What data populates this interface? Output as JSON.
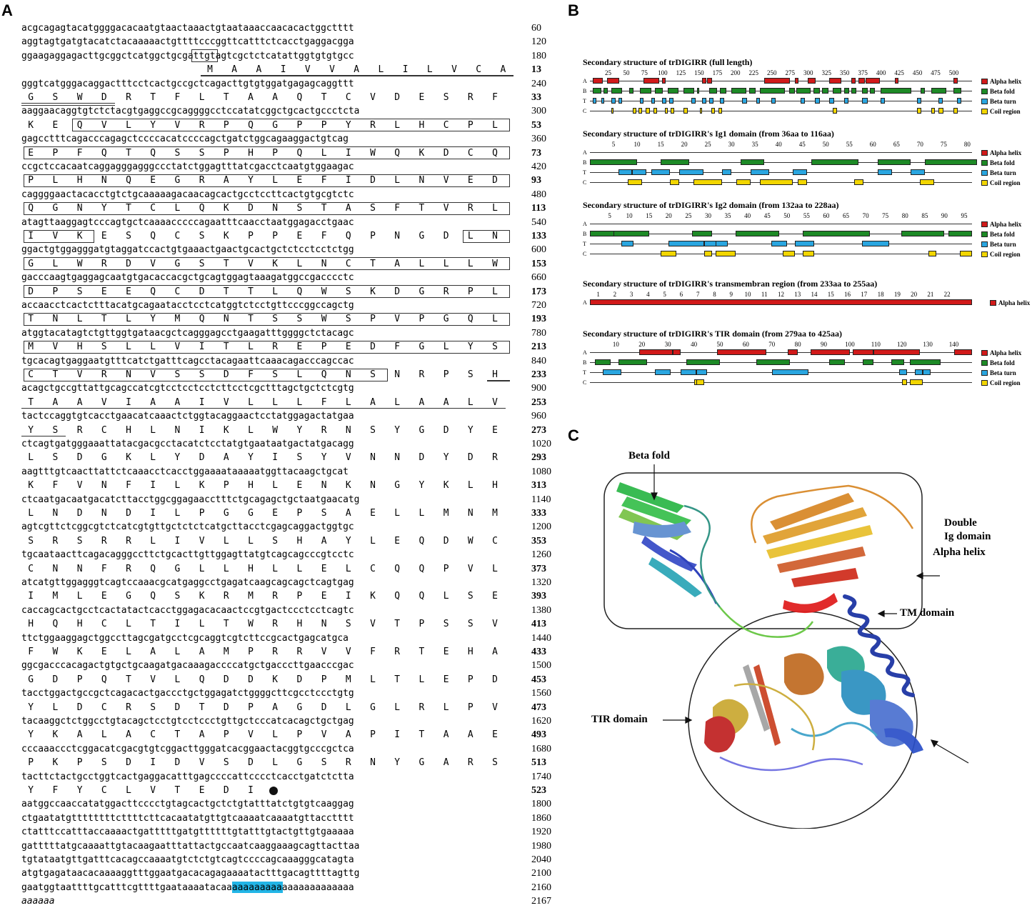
{
  "panels": {
    "a": "A",
    "b": "B",
    "c": "C"
  },
  "colors": {
    "yellow": "#ffff00",
    "magenta": "#e0157a",
    "cyan": "#22b5e6",
    "alpha": "#d11a1a",
    "beta": "#1d8a26",
    "turn": "#2aa6e0",
    "coil": "#f2d600"
  },
  "sequence": {
    "rows": [
      {
        "nt": "acgcagagtacatggggacacaatgtaactaaactgtaataaaccaacacactggctttt",
        "pos": "60"
      },
      {
        "nt": "aggtagtgatgtacatctacaaaaactgttttcccggttcatttctcacctgaggacgga",
        "pos": "120"
      },
      {
        "nt": "ggaagaggagacttgcggctcatggctgcgattgtagtcgctctcatattggtgtgtgcc",
        "pos": "180"
      },
      {
        "aa": "MAAIVVALILVCA",
        "aa_start": 22,
        "pos": "13"
      },
      {
        "nt": "gggtcatgggacaggactttcctcactgccgctcagacttgtgtggatgagagcaggttt",
        "pos": "240"
      },
      {
        "aa": "GSWDRTFLTAAQTCVDESRF",
        "aa_start": 0,
        "pos": "33"
      },
      {
        "nt": "aaggaacaggtgtctctacgtgaggccgcaggggcctccatatcggctgcactgccctcta",
        "pos": "300"
      },
      {
        "aa": "KEQVLYVRPQGPPYRLHCPL",
        "aa_start": 0,
        "pos": "53"
      },
      {
        "nt": "gagcctttcagacccagagctccccacatccccagctgatctggcagaaggactgtcag",
        "pos": "360"
      },
      {
        "aa": "EPFQTQSSPHPQLIWQKDCQ",
        "aa_start": 0,
        "pos": "73"
      },
      {
        "nt": "ccgctccacaatcaggagggagggccctatctggagtttatcgacctcaatgtggaagac",
        "pos": "420"
      },
      {
        "aa": "PLHNQEGRAYLEFIDLNVED",
        "aa_start": 0,
        "pos": "93"
      },
      {
        "nt": "caggggaactacacctgtctgcaaaaagacaacagcactgcctccttcactgtgcgtctc",
        "pos": "480"
      },
      {
        "aa": "QGNYTCLQKDNSTASFTVRL",
        "aa_start": 0,
        "pos": "113"
      },
      {
        "nt": "atagttaaggagtcccagtgctcaaaacccccagaatttcaacctaatggagacctgaac",
        "pos": "540"
      },
      {
        "aa": "IVKESQCSKPPEFQPNGDLN",
        "aa_start": 0,
        "pos": "133"
      },
      {
        "nt": "ggactgtggagggatgtaggatccactgtgaaactgaactgcactgctctcctcctctgg",
        "pos": "600"
      },
      {
        "aa": "GLWRDVGSTVKLNCTALLLW",
        "aa_start": 0,
        "pos": "153"
      },
      {
        "nt": "gacccaagtgaggagcaatgtgacaccacgctgcagtggagtaaagatggccgacccctc",
        "pos": "660"
      },
      {
        "aa": "DPSEEQCDTTLQWSKDGRPL",
        "aa_start": 0,
        "pos": "173"
      },
      {
        "nt": "accaacctcactctttacatgcagaatacctcctcatggtctcctgttcccggccagctg",
        "pos": "720"
      },
      {
        "aa": "TNLTLYMQNTSSWSPVPGQL",
        "aa_start": 0,
        "pos": "193"
      },
      {
        "nt": "atggtacatagtctgttggtgataacgctcagggagcctgaagatttggggctctacagc",
        "pos": "780"
      },
      {
        "aa": "MVHSLLVITLREPEDFGLYS",
        "aa_start": 0,
        "pos": "213"
      },
      {
        "nt": "tgcacagtgaggaatgtttcatctgatttcagcctacagaattcaaacagacccagccac",
        "pos": "840"
      },
      {
        "aa": "CTVRNVSSDFSLQNSNRPSH",
        "aa_start": 0,
        "pos": "233"
      },
      {
        "nt": "acagctgccgttattgcagccatcgtcctcctcctcttcctcgctttagctgctctcgtg",
        "pos": "900"
      },
      {
        "aa": "TAAVIAAIVLLLFLALAALV",
        "aa_start": 0,
        "pos": "253"
      },
      {
        "nt": "tactccaggtgtcacctgaacatcaaactctggtacaggaactcctatggagactatgaa",
        "pos": "960"
      },
      {
        "aa": "YSRCHLNIKLWYRNSYGDYE",
        "aa_start": 0,
        "pos": "273"
      },
      {
        "nt": "ctcagtgatgggaaattatacgacgcctacatctcctatgtgaataatgactatgacagg",
        "pos": "1020"
      },
      {
        "aa": "LSDGKLYDAYISYVNNDYDR",
        "aa_start": 0,
        "pos": "293"
      },
      {
        "nt": "aagtttgtcaacttattctcaaacctcacctggaaaataaaaatggttacaagctgcat",
        "pos": "1080"
      },
      {
        "aa": "KFVNFILKPHLENKNGYKLH",
        "aa_start": 0,
        "pos": "313"
      },
      {
        "nt": "ctcaatgacaatgacatcttacctggcggagaacctttctgcagagctgctaatgaacatg",
        "pos": "1140"
      },
      {
        "aa": "LNDNDILPGGEPSAELLMNM",
        "aa_start": 0,
        "pos": "333"
      },
      {
        "nt": "agtcgttctcggcgtctcatcgtgttgctctctcatgcttacctcgagcaggactggtgc",
        "pos": "1200"
      },
      {
        "aa": "SRSRRLIVLLSHAYLEQDWC",
        "aa_start": 0,
        "pos": "353"
      },
      {
        "nt": "tgcaataacttcagacagggccttctgcacttgttggagttatgtcagcagcccgtcctc",
        "pos": "1260"
      },
      {
        "aa": "CNNFRQGLLHLLELCQQPVL",
        "aa_start": 0,
        "pos": "373"
      },
      {
        "nt": "atcatgttggagggtcagtccaaacgcatgaggcctgagatcaagcagcagctcagtgag",
        "pos": "1320"
      },
      {
        "aa": "IMLEGQSKRMRPEIKQQLSE",
        "aa_start": 0,
        "pos": "393"
      },
      {
        "nt": "caccagcactgcctcactatactcacctggagacacaactccgtgactccctcctcagtc",
        "pos": "1380"
      },
      {
        "aa": "HQHCLTILTWRHNSVTPSSV",
        "aa_start": 0,
        "pos": "413"
      },
      {
        "nt": "ttctggaaggagctggccttagcgatgcctcgcaggtcgtcttccgcactgagcatgca",
        "pos": "1440"
      },
      {
        "aa": "FWKELALAMPRRVVFRTEHA",
        "aa_start": 0,
        "pos": "433"
      },
      {
        "nt": "ggcgacccacagactgtgctgcaagatgacaaagaccccatgctgacccttgaacccgac",
        "pos": "1500"
      },
      {
        "aa": "GDPQTVLQDDKDPMLTLEPD",
        "aa_start": 0,
        "pos": "453"
      },
      {
        "nt": "tacctggactgccgctcagacactgaccctgctggagatctggggcttcgcctccctgtg",
        "pos": "1560"
      },
      {
        "aa": "YLDCRSDTDPAGDLGLRLPV",
        "aa_start": 0,
        "pos": "473"
      },
      {
        "nt": "tacaaggctctggcctgtacagctcctgtcctccctgttgctcccatcacagctgctgag",
        "pos": "1620"
      },
      {
        "aa": "YKALACTAPVLPVAPITAAE",
        "aa_start": 0,
        "pos": "493"
      },
      {
        "nt": "cccaaaccctcggacatcgacgtgtcggacttgggatcacggaactacggtgcccgctca",
        "pos": "1680"
      },
      {
        "aa": "PKPSDIDVSDLGSRNYGARS",
        "aa_start": 0,
        "pos": "513"
      },
      {
        "nt": "tacttctactgcctggtcactgaggacatttgagccccattcccctcacctgatctctta",
        "pos": "1740"
      },
      {
        "aa": "YFYCLVTEDI",
        "aa_start": 0,
        "pos": "523"
      },
      {
        "nt": "aatggccaaccatatggacttcccctgtagcactgctctgtatttatctgtgtcaaggag",
        "pos": "1800"
      },
      {
        "nt": "ctgaatatgttttttttcttttcttcacaatatgttgtcaaaatcaaaatgttacctttt",
        "pos": "1860"
      },
      {
        "nt": "ctatttccatttaccaaaactgatttttgatgttttttgtatttgtactgttgtgaaaaa",
        "pos": "1920"
      },
      {
        "nt": "gatttttatgcaaaattgtacaagaatttattactgccaatcaaggaaagcagttacttaa",
        "pos": "1980"
      },
      {
        "nt": "tgtataatgttgatttcacagccaaaatgtctctgtcagtccccagcaaagggcatagta",
        "pos": "2040"
      },
      {
        "nt": "atgtgagataacacaaaaggtttggaatgacacagagaaaatactttgacagttttagttg",
        "pos": "2100"
      },
      {
        "nt": "gaatggtaattttgcatttcgttttgaataaaatacaaaaaaaaaaaaaaaaaaaaaaaa",
        "pos": "2160"
      },
      {
        "nt": "aaaaaa",
        "pos": "2167"
      }
    ]
  },
  "secondary": [
    {
      "title": "Secondary structure of trDIGIRR (full length)",
      "ticks": [
        "25",
        "50",
        "75",
        "100",
        "125",
        "150",
        "175",
        "200",
        "225",
        "250",
        "275",
        "300",
        "325",
        "350",
        "375",
        "400",
        "425",
        "450",
        "475",
        "500"
      ],
      "length": 525,
      "rows": [
        "A",
        "B",
        "T",
        "C"
      ],
      "legend": [
        "Alpha helix",
        "Beta fold",
        "Beta turn",
        "Coil region"
      ]
    },
    {
      "title": "Secondary structure of trDIGIRR's Ig1 domain (from 36aa to 116aa)",
      "ticks": [
        "5",
        "10",
        "15",
        "20",
        "25",
        "30",
        "35",
        "40",
        "45",
        "50",
        "55",
        "60",
        "65",
        "70",
        "75",
        "80"
      ],
      "length": 81,
      "rows": [
        "A",
        "B",
        "T",
        "C"
      ],
      "legend": [
        "Alpha helix",
        "Beta fold",
        "Beta turn",
        "Coil region"
      ]
    },
    {
      "title": "Secondary structure of trDIGIRR's Ig2 domain (from 132aa to 228aa)",
      "ticks": [
        "5",
        "10",
        "15",
        "20",
        "25",
        "30",
        "35",
        "40",
        "45",
        "50",
        "55",
        "60",
        "65",
        "70",
        "75",
        "80",
        "85",
        "90",
        "95"
      ],
      "length": 97,
      "rows": [
        "A",
        "B",
        "T",
        "C"
      ],
      "legend": [
        "Alpha helix",
        "Beta fold",
        "Beta turn",
        "Coil region"
      ]
    },
    {
      "title": "Secondary structure of trDIGIRR's transmembran region (from 233aa to 255aa)",
      "ticks": [
        "1",
        "2",
        "3",
        "4",
        "5",
        "6",
        "7",
        "8",
        "9",
        "10",
        "11",
        "12",
        "13",
        "14",
        "15",
        "16",
        "17",
        "18",
        "19",
        "20",
        "21",
        "22"
      ],
      "length": 23,
      "rows": [
        "A"
      ],
      "legend": [
        "Alpha helix"
      ]
    },
    {
      "title": "Secondary structure of trDIGIRR's TIR domain (from 279aa to 425aa)",
      "ticks": [
        "10",
        "20",
        "30",
        "40",
        "50",
        "60",
        "70",
        "80",
        "90",
        "100",
        "110",
        "120",
        "130",
        "140"
      ],
      "length": 147,
      "rows": [
        "A",
        "B",
        "T",
        "C"
      ],
      "legend": [
        "Alpha helix",
        "Beta fold",
        "Beta turn",
        "Coil region"
      ]
    }
  ],
  "structure_labels": {
    "beta_fold": "Beta fold",
    "double_ig": "Double",
    "double_ig_2": "Ig domain",
    "tm": "TM  domain",
    "tir": "TIR  domain",
    "alpha": "Alpha helix"
  }
}
